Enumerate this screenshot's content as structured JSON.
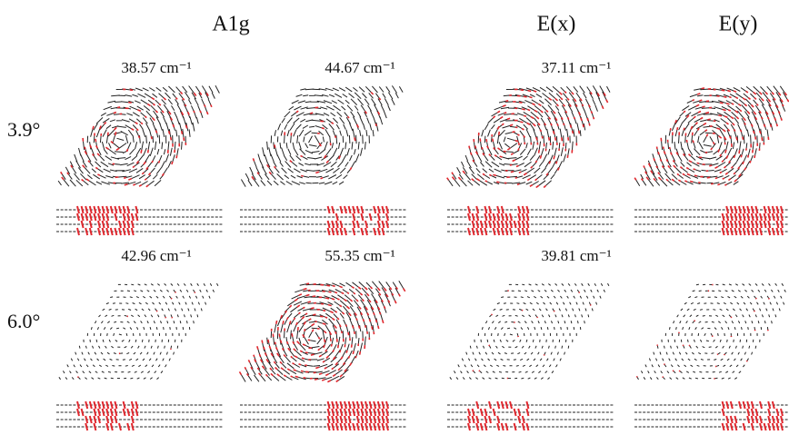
{
  "columns": [
    {
      "label": "A1g"
    },
    {
      "label": "E(x)"
    },
    {
      "label": "E(y)"
    }
  ],
  "rows": [
    {
      "label": "3.9°",
      "frequencies": [
        "38.57 cm⁻¹",
        "44.67 cm⁻¹",
        "37.11 cm⁻¹"
      ]
    },
    {
      "label": "6.0°",
      "frequencies": [
        "42.96 cm⁻¹",
        "55.35 cm⁻¹",
        "39.81 cm⁻¹"
      ]
    }
  ]
}
